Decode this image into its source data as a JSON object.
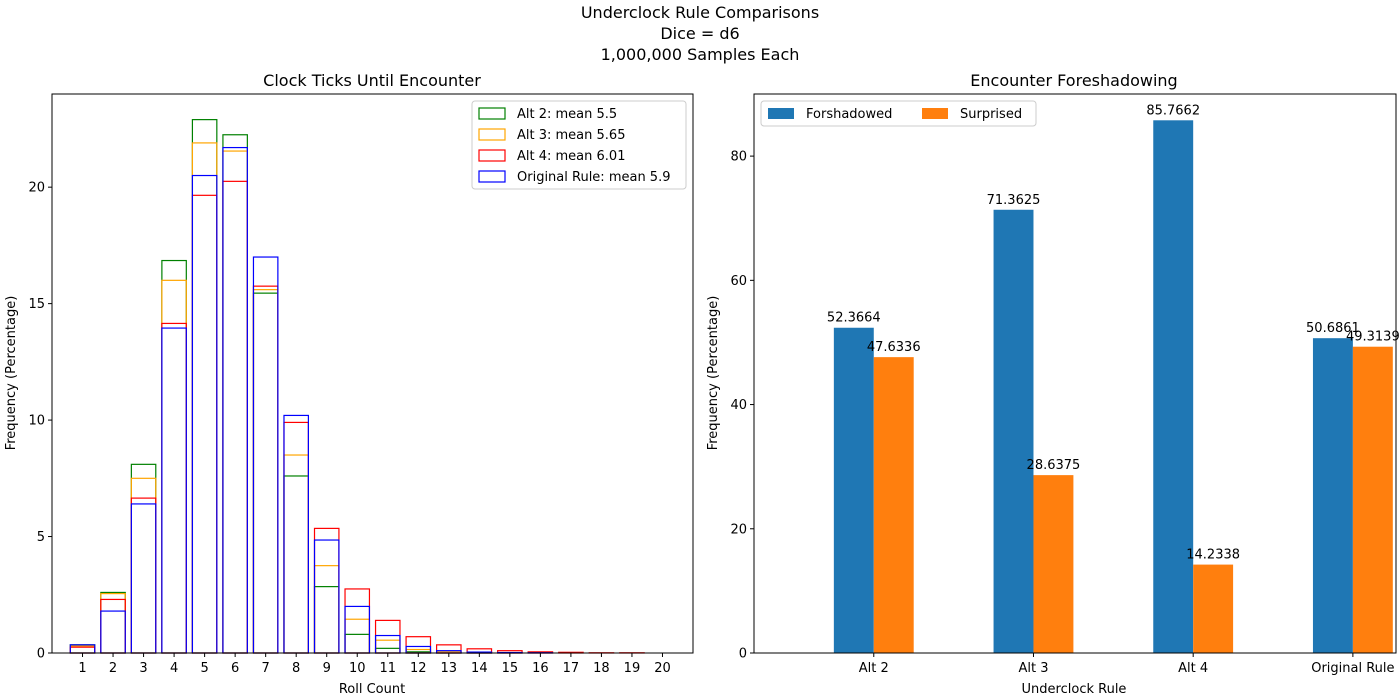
{
  "figure": {
    "suptitle": [
      "Underclock Rule Comparisons",
      "Dice = d6",
      "1,000,000 Samples Each"
    ]
  },
  "chart_data": [
    {
      "type": "bar",
      "subtype": "overlaid-outline-histogram",
      "title": "Clock Ticks Until Encounter",
      "xlabel": "Roll Count",
      "ylabel": "Frequency (Percentage)",
      "categories": [
        "1",
        "2",
        "3",
        "4",
        "5",
        "6",
        "7",
        "8",
        "9",
        "10",
        "11",
        "12",
        "13",
        "14",
        "15",
        "16",
        "17",
        "18",
        "19",
        "20"
      ],
      "ylim": [
        0,
        24
      ],
      "yticks": [
        0,
        5,
        10,
        15,
        20
      ],
      "legend_position": "upper right",
      "grid": false,
      "series": [
        {
          "name": "Alt 2: mean 5.5",
          "color": "#008000",
          "values": [
            0.35,
            2.6,
            8.1,
            16.85,
            22.9,
            22.25,
            15.45,
            7.6,
            2.85,
            0.8,
            0.2,
            0.05,
            0.02,
            0.01,
            0.0,
            0.0,
            0.0,
            0.0,
            0.0,
            0.0
          ]
        },
        {
          "name": "Alt 3: mean 5.65",
          "color": "#ffa500",
          "values": [
            0.3,
            2.55,
            7.5,
            16.0,
            21.9,
            21.55,
            15.6,
            8.5,
            3.75,
            1.45,
            0.55,
            0.15,
            0.05,
            0.02,
            0.01,
            0.0,
            0.0,
            0.0,
            0.0,
            0.0
          ]
        },
        {
          "name": "Alt 4: mean 6.01",
          "color": "#ff0000",
          "values": [
            0.25,
            2.3,
            6.65,
            14.15,
            19.65,
            20.25,
            15.75,
            9.9,
            5.35,
            2.75,
            1.4,
            0.7,
            0.35,
            0.18,
            0.1,
            0.05,
            0.03,
            0.01,
            0.01,
            0.0
          ]
        },
        {
          "name": "Original Rule: mean 5.9",
          "color": "#0000ff",
          "values": [
            0.35,
            1.8,
            6.4,
            13.95,
            20.5,
            21.7,
            17.0,
            10.2,
            4.85,
            2.0,
            0.75,
            0.28,
            0.1,
            0.04,
            0.02,
            0.01,
            0.0,
            0.0,
            0.0,
            0.0
          ]
        }
      ]
    },
    {
      "type": "bar",
      "subtype": "grouped",
      "title": "Encounter Foreshadowing",
      "xlabel": "Underclock Rule",
      "ylabel": "Frequency (Percentage)",
      "categories": [
        "Alt 2",
        "Alt 3",
        "Alt 4",
        "Original Rule"
      ],
      "ylim": [
        0,
        90
      ],
      "yticks": [
        0,
        20,
        40,
        60,
        80
      ],
      "legend_position": "upper left",
      "grid": false,
      "series": [
        {
          "name": "Forshadowed",
          "color": "#1f77b4",
          "values": [
            52.3664,
            71.3625,
            85.7662,
            50.6861
          ]
        },
        {
          "name": "Surprised",
          "color": "#ff7f0e",
          "values": [
            47.6336,
            28.6375,
            14.2338,
            49.3139
          ]
        }
      ]
    }
  ]
}
